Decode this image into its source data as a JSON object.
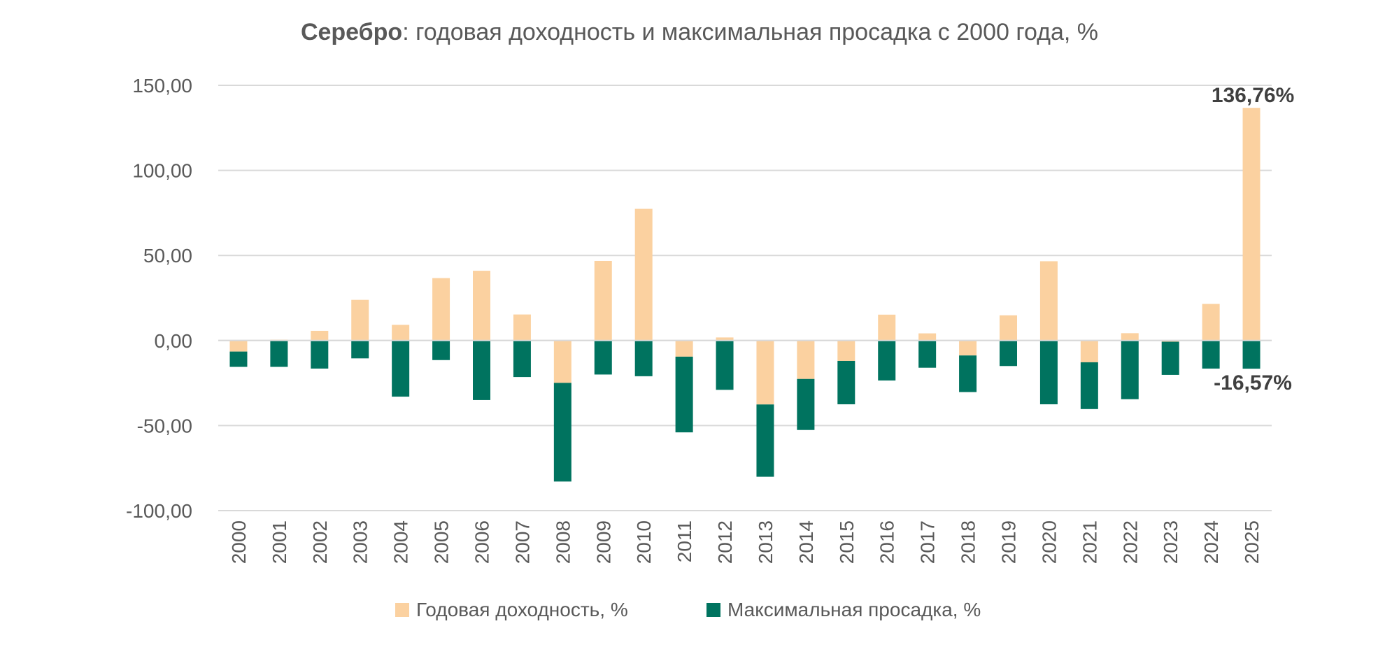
{
  "chart_data": {
    "type": "bar",
    "stacked": true,
    "title_bold": "Серебро",
    "title_rest": ": годовая доходность и максимальная просадка с 2000 года, %",
    "xlabel": "",
    "ylabel": "",
    "ylim": [
      -100,
      150
    ],
    "yticks": [
      150,
      100,
      50,
      0,
      -50,
      -100
    ],
    "ytick_labels": [
      "150,00",
      "100,00",
      "50,00",
      "0,00",
      "-50,00",
      "-100,00"
    ],
    "grid": true,
    "legend_position": "bottom-center",
    "categories": [
      "2000",
      "2001",
      "2002",
      "2003",
      "2004",
      "2005",
      "2006",
      "2007",
      "2008",
      "2009",
      "2010",
      "2011",
      "2012",
      "2013",
      "2014",
      "2015",
      "2016",
      "2017",
      "2018",
      "2019",
      "2020",
      "2021",
      "2022",
      "2023",
      "2024",
      "2025"
    ],
    "series": [
      {
        "name": "Годовая доходность, %",
        "color": "#FBD1A0",
        "values": [
          -6.5,
          0.5,
          5.7,
          23.9,
          9.2,
          36.7,
          41.0,
          15.3,
          -24.9,
          46.8,
          77.4,
          -9.5,
          1.8,
          -37.6,
          -22.6,
          -12.0,
          15.2,
          4.2,
          -8.8,
          14.8,
          46.6,
          -12.8,
          4.3,
          -0.7,
          21.5,
          136.76
        ]
      },
      {
        "name": "Максимальная просадка, %",
        "color": "#00735F",
        "values": [
          -9.0,
          -15.5,
          -16.5,
          -10.5,
          -33.0,
          -11.5,
          -35.0,
          -21.5,
          -58.0,
          -20.0,
          -21.0,
          -44.5,
          -29.0,
          -42.5,
          -30.0,
          -25.5,
          -23.5,
          -16.0,
          -21.5,
          -15.0,
          -37.5,
          -27.5,
          -34.5,
          -19.5,
          -16.5,
          -16.57
        ]
      }
    ],
    "annotations": [
      {
        "text": "136,76%",
        "category": "2025",
        "series": 0
      },
      {
        "text": "-16,57%",
        "category": "2025",
        "series": 1
      }
    ]
  }
}
